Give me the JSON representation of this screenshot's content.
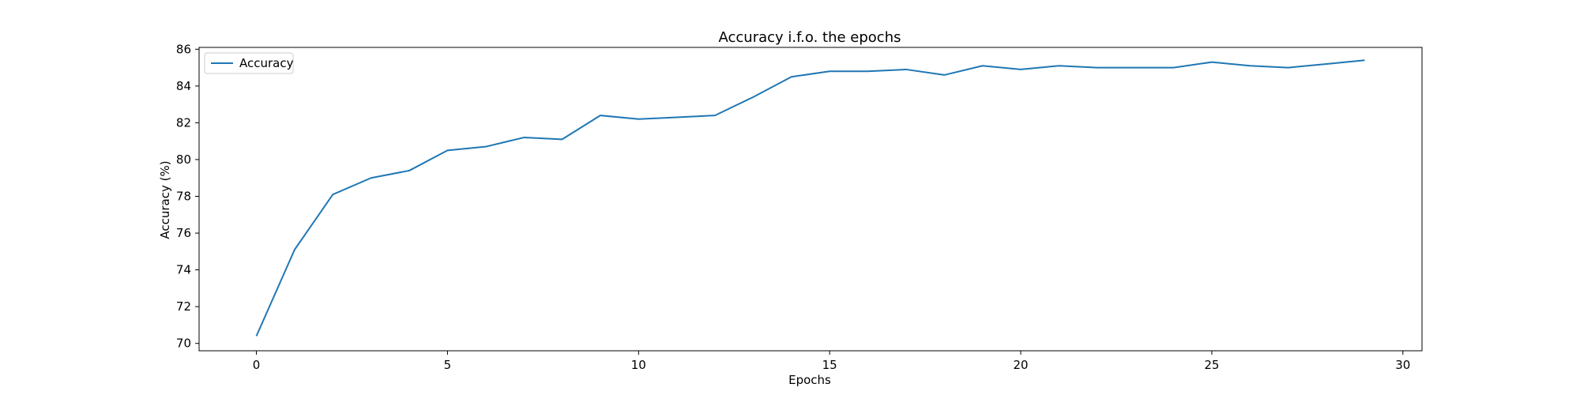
{
  "chart_data": {
    "type": "line",
    "title": "Accuracy i.f.o. the epochs",
    "xlabel": "Epochs",
    "ylabel": "Accuracy (%)",
    "xlim": [
      -1.5,
      30.5
    ],
    "ylim": [
      69.6,
      86.1
    ],
    "xticks": [
      0,
      5,
      10,
      15,
      20,
      25,
      30
    ],
    "yticks": [
      70,
      72,
      74,
      76,
      78,
      80,
      82,
      84,
      86
    ],
    "grid": false,
    "legend_position": "top-left",
    "series": [
      {
        "name": "Accuracy",
        "color": "#1f77b4",
        "x": [
          0,
          1,
          2,
          3,
          4,
          5,
          6,
          7,
          8,
          9,
          10,
          11,
          12,
          13,
          14,
          15,
          16,
          17,
          18,
          19,
          20,
          21,
          22,
          23,
          24,
          25,
          26,
          27,
          28,
          29
        ],
        "y": [
          70.4,
          75.1,
          78.1,
          79.0,
          79.4,
          80.5,
          80.7,
          81.2,
          81.1,
          82.4,
          82.2,
          82.3,
          82.4,
          83.4,
          84.5,
          84.8,
          84.8,
          84.9,
          84.6,
          85.1,
          84.9,
          85.1,
          85.0,
          85.0,
          85.0,
          85.3,
          85.1,
          85.0,
          85.2,
          85.4
        ]
      }
    ]
  }
}
